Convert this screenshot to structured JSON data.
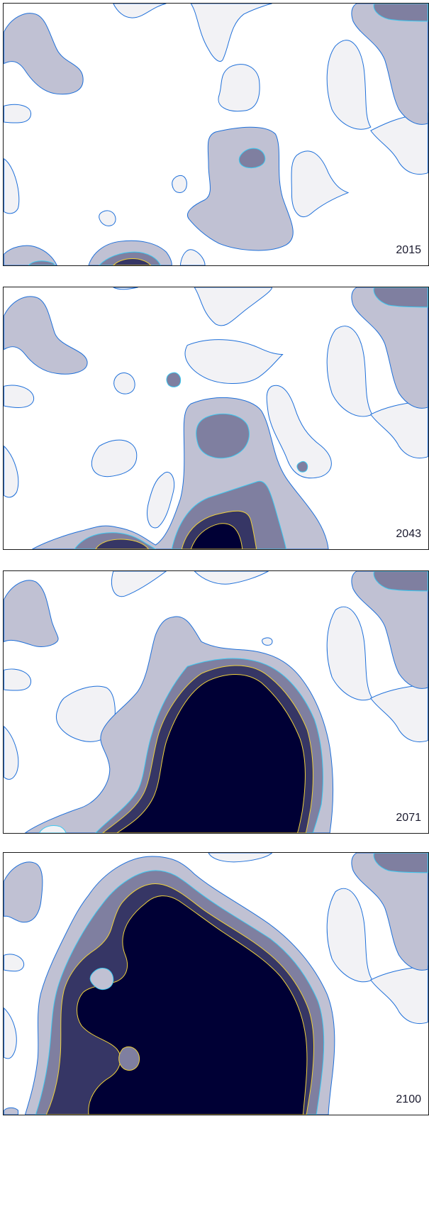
{
  "colors": {
    "light": "#f2f2f5",
    "light_gray": "#c0c1d3",
    "mid": "#7f7fa0",
    "dark": "#363665",
    "darkest": "#000035",
    "contour_blue": "#1e6fd9",
    "contour_cyan": "#3cc8f0",
    "contour_yellow": "#f0d23c",
    "frame": "#1a1a1a"
  },
  "panels": [
    {
      "year": "2015"
    },
    {
      "year": "2043"
    },
    {
      "year": "2071"
    },
    {
      "year": "2100"
    }
  ]
}
